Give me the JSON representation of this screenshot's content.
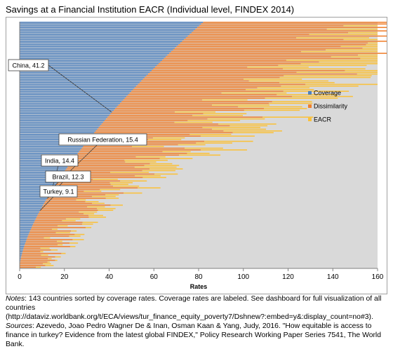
{
  "title": "Savings at a Financial Institution EACR (Individual level, FINDEX 2014)",
  "chart_data": {
    "type": "bar",
    "orientation": "horizontal",
    "stacked": true,
    "n_countries": 143,
    "sorted_by": "Coverage",
    "xlabel": "Rates",
    "xlim": [
      0,
      160
    ],
    "x_ticks": [
      "0",
      "20",
      "40",
      "60",
      "80",
      "100",
      "120",
      "140",
      "160"
    ],
    "grid": false,
    "background_color": "#d9d9d9",
    "legend_position": "right",
    "series": [
      {
        "name": "Coverage",
        "color": "#4f81bd"
      },
      {
        "name": "Dissimilarity",
        "color": "#f07f2c"
      },
      {
        "name": "EACR",
        "color": "#fac13c"
      }
    ],
    "coverage_range": [
      0,
      82
    ],
    "callouts": [
      {
        "label": "China, 41.2",
        "coverage": 41.2
      },
      {
        "label": "Russian Federation, 15.4",
        "coverage": 15.4
      },
      {
        "label": "India, 14.4",
        "coverage": 14.4
      },
      {
        "label": "Brazil, 12.3",
        "coverage": 12.3
      },
      {
        "label": "Turkey, 9.1",
        "coverage": 9.1
      }
    ]
  },
  "notes": {
    "notes_label": "Notes",
    "notes_text": ": 143 countries sorted by coverage rates. Coverage rates are labeled. See dashboard for full visualization of all countries (http://dataviz.worldbank.org/t/ECA/views/tur_finance_equity_poverty7/Dshnew?:embed=y&:display_count=no#3).",
    "sources_label": "Sources",
    "sources_text": ": Azevedo, Joao Pedro Wagner De & Inan, Osman Kaan & Yang, Judy, 2016. \"How equitable is access to finance in turkey? Evidence from the latest global FINDEX,\" Policy Research Working Paper Series 7541, The World Bank."
  }
}
